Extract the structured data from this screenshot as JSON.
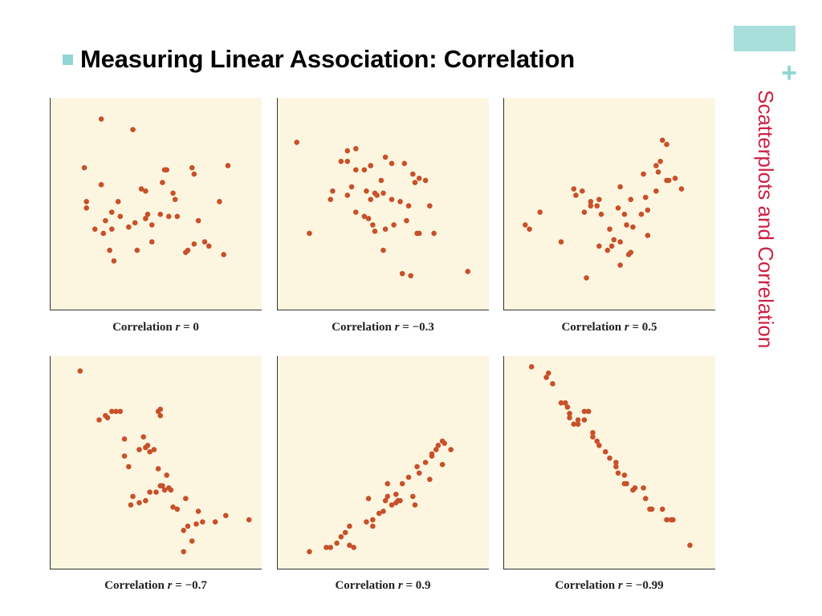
{
  "slide": {
    "title": "Measuring Linear Association: Correlation",
    "side_title": "Scatterplots and Correlation",
    "plus": "+",
    "colors": {
      "accent": "#8fd6d3",
      "side_title": "#cc2244",
      "panel_bg": "#fcf6e0",
      "point": "#c8502a"
    }
  },
  "chart_data": [
    {
      "type": "scatter",
      "caption_prefix": "Correlation",
      "caption_var": "r",
      "caption_value": "= 0",
      "xlim": [
        0,
        100
      ],
      "ylim": [
        0,
        100
      ],
      "x": [
        24,
        39,
        16,
        55,
        54,
        53,
        17,
        68,
        67,
        84,
        17,
        45,
        43,
        80,
        59,
        32,
        40,
        60,
        29,
        33,
        52,
        26,
        45,
        48,
        29,
        37,
        68,
        73,
        75,
        28,
        25,
        41,
        64,
        65,
        82,
        30,
        21,
        48,
        46,
        24,
        70,
        56,
        58
      ],
      "y": [
        90,
        85,
        67,
        66,
        66,
        60,
        51,
        64,
        67,
        68,
        48,
        56,
        57,
        51,
        52,
        51,
        41,
        44,
        46,
        44,
        45,
        42,
        43,
        32,
        38,
        39,
        31,
        32,
        30,
        28,
        36,
        28,
        27,
        28,
        26,
        23,
        38,
        40,
        45,
        59,
        42,
        44,
        55
      ]
    },
    {
      "type": "scatter",
      "caption_prefix": "Correlation",
      "caption_var": "r",
      "caption_value": "= −0.3",
      "xlim": [
        0,
        100
      ],
      "ylim": [
        0,
        100
      ],
      "x": [
        9,
        33,
        44,
        51,
        60,
        67,
        70,
        33,
        37,
        35,
        26,
        25,
        33,
        44,
        47,
        46,
        50,
        54,
        58,
        62,
        72,
        37,
        41,
        45,
        43,
        51,
        55,
        66,
        50,
        30,
        37,
        41,
        49,
        61,
        67,
        46,
        74,
        59,
        63,
        15,
        54,
        65,
        90,
        42,
        64
      ],
      "y": [
        79,
        75,
        68,
        72,
        69,
        62,
        61,
        70,
        66,
        58,
        56,
        52,
        54,
        52,
        54,
        55,
        55,
        52,
        51,
        49,
        49,
        46,
        44,
        40,
        43,
        38,
        40,
        36,
        28,
        70,
        76,
        66,
        61,
        42,
        36,
        37,
        36,
        17,
        16,
        36,
        69,
        60,
        18,
        56,
        64
      ]
    },
    {
      "type": "scatter",
      "caption_prefix": "Correlation",
      "caption_var": "r",
      "caption_value": "= 0.5",
      "xlim": [
        0,
        100
      ],
      "ylim": [
        0,
        100
      ],
      "x": [
        10,
        12,
        17,
        27,
        33,
        34,
        37,
        38,
        41,
        41,
        45,
        44,
        46,
        50,
        52,
        55,
        49,
        59,
        60,
        57,
        58,
        61,
        55,
        54,
        66,
        72,
        73,
        67,
        72,
        77,
        74,
        75,
        81,
        84,
        78,
        60,
        65,
        68,
        51,
        45,
        55,
        68,
        77,
        39
      ],
      "y": [
        40,
        38,
        46,
        32,
        57,
        54,
        56,
        46,
        51,
        49,
        52,
        49,
        45,
        38,
        33,
        32,
        28,
        26,
        27,
        45,
        40,
        39,
        58,
        48,
        64,
        68,
        65,
        53,
        56,
        61,
        70,
        80,
        62,
        57,
        61,
        52,
        45,
        35,
        30,
        30,
        21,
        47,
        78,
        15
      ],
      "xlim_note": ""
    },
    {
      "type": "scatter",
      "caption_prefix": "Correlation",
      "caption_var": "r",
      "caption_value": "= −0.7",
      "xlim": [
        0,
        100
      ],
      "ylim": [
        0,
        100
      ],
      "x": [
        14,
        23,
        26,
        27,
        29,
        31,
        33,
        52,
        51,
        52,
        44,
        45,
        46,
        47,
        35,
        35,
        37,
        42,
        49,
        51,
        55,
        53,
        57,
        45,
        47,
        50,
        52,
        54,
        42,
        39,
        38,
        56,
        58,
        60,
        64,
        65,
        69,
        70,
        63,
        67,
        72,
        78,
        63,
        83,
        94
      ],
      "y": [
        93,
        70,
        72,
        71,
        74,
        74,
        74,
        75,
        74,
        72,
        62,
        57,
        58,
        55,
        61,
        53,
        48,
        56,
        56,
        47,
        44,
        39,
        37,
        32,
        36,
        36,
        39,
        37,
        31,
        34,
        30,
        38,
        29,
        28,
        33,
        20,
        21,
        27,
        18,
        13,
        22,
        22,
        8,
        25,
        23
      ]
    },
    {
      "type": "scatter",
      "caption_prefix": "Correlation",
      "caption_var": "r",
      "caption_value": "= 0.9",
      "xlim": [
        0,
        100
      ],
      "ylim": [
        0,
        100
      ],
      "x": [
        15,
        23,
        25,
        28,
        32,
        34,
        30,
        34,
        42,
        45,
        48,
        54,
        50,
        51,
        56,
        57,
        56,
        52,
        64,
        59,
        62,
        70,
        73,
        67,
        73,
        75,
        78,
        79,
        76,
        78,
        82,
        66,
        72,
        65,
        58,
        43,
        36,
        45,
        52
      ],
      "y": [
        8,
        10,
        10,
        12,
        17,
        11,
        15,
        20,
        22,
        23,
        26,
        30,
        27,
        32,
        31,
        32,
        35,
        34,
        34,
        40,
        43,
        50,
        53,
        45,
        54,
        56,
        60,
        59,
        58,
        49,
        56,
        48,
        42,
        30,
        32,
        33,
        10,
        20,
        40
      ],
      "xlim_note": ""
    },
    {
      "type": "scatter",
      "caption_prefix": "Correlation",
      "caption_var": "r",
      "caption_value": "= −0.99",
      "xlim": [
        0,
        100
      ],
      "ylim": [
        0,
        100
      ],
      "x": [
        13,
        20,
        23,
        21,
        27,
        29,
        30,
        31,
        31,
        33,
        35,
        38,
        38,
        35,
        40,
        42,
        42,
        44,
        45,
        48,
        50,
        53,
        53,
        54,
        57,
        57,
        58,
        61,
        62,
        67,
        66,
        69,
        70,
        75,
        79,
        80,
        77,
        88
      ],
      "y": [
        95,
        90,
        87,
        92,
        78,
        78,
        76,
        73,
        71,
        68,
        70,
        74,
        70,
        68,
        74,
        62,
        64,
        60,
        58,
        55,
        52,
        50,
        48,
        45,
        44,
        40,
        40,
        37,
        38,
        33,
        38,
        28,
        28,
        28,
        23,
        23,
        23,
        11
      ],
      "xlim_note": ""
    }
  ]
}
